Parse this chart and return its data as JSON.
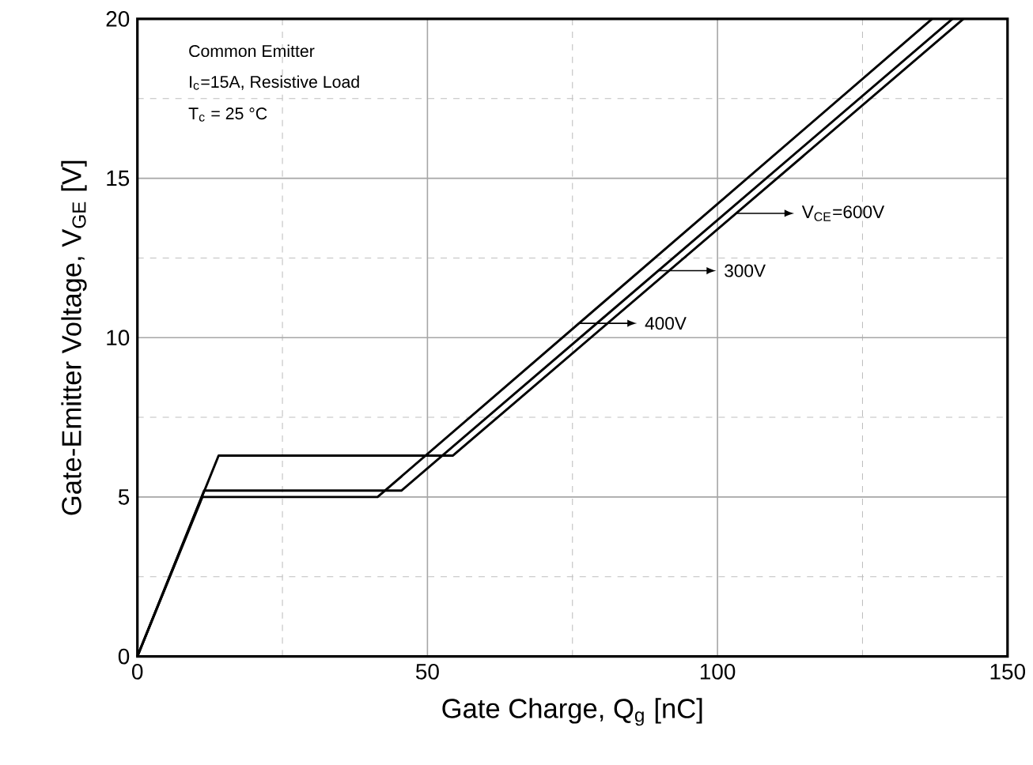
{
  "chart_data": {
    "type": "line",
    "xlabel": "Gate Charge, Q$_{g}$ [nC]",
    "ylabel": "Gate-Emitter Voltage, V$_{GE}$ [V]",
    "annotations": [
      "Common Emitter",
      "I$_{c}$=15A, Resistive Load",
      "T$_{c}$ = 25 °C"
    ],
    "series": [
      {
        "name": "V$_{CE}$=600V",
        "color": "#000000",
        "x": [
          0,
          14.0,
          54.4,
          142.4
        ],
        "values": [
          0,
          6.3,
          6.3,
          20
        ]
      },
      {
        "name": "300V",
        "color": "#000000",
        "x": [
          0,
          11.5,
          45.5,
          140.5
        ],
        "values": [
          0,
          5.2,
          5.2,
          20
        ]
      },
      {
        "name": "400V",
        "color": "#000000",
        "x": [
          0,
          11.2,
          41.4,
          137.0
        ],
        "values": [
          0,
          5.0,
          5.0,
          20
        ]
      }
    ],
    "xlim": [
      0,
      150
    ],
    "ylim": [
      0,
      20
    ],
    "xticks": [
      0,
      50,
      100,
      150
    ],
    "yticks": [
      0,
      5,
      10,
      15,
      20
    ],
    "grid": true,
    "legend": "right",
    "line_style": "solid",
    "marker": "none"
  }
}
